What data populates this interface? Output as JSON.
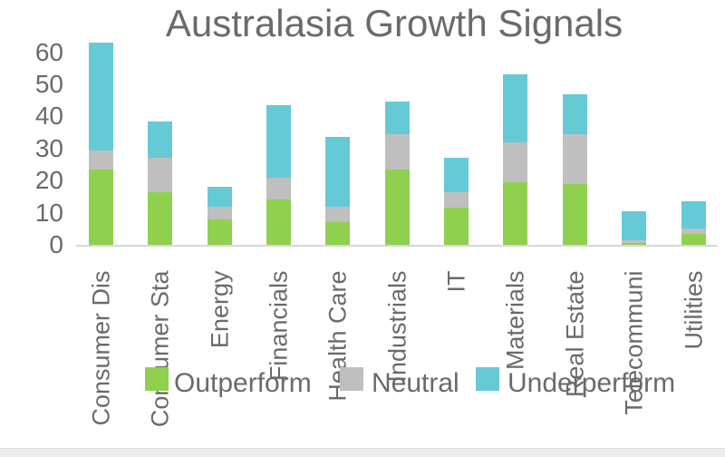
{
  "title": "Australasia Growth Signals",
  "colors": {
    "outperform_green": "#90d04f",
    "neutral_gray": "#bfbfbf",
    "underperform_cyan": "#66c9d6",
    "text_gray": "#6a6a6a",
    "axis_line": "#d8d8d8",
    "bottom_strip": "#ebecec"
  },
  "chart_data": {
    "type": "bar",
    "stacked": true,
    "title": "Australasia Growth Signals",
    "xlabel": "",
    "ylabel": "",
    "grid": false,
    "legend_position": "bottom",
    "ylim": [
      0,
      65
    ],
    "y_ticks": [
      0,
      10,
      20,
      30,
      40,
      50,
      60
    ],
    "categories": [
      "Consumer Dis",
      "Consumer Sta",
      "Energy",
      "Financials",
      "Health Care",
      "Industrials",
      "IT",
      "Materials",
      "Real Estate",
      "Telecommuni",
      "Utilities"
    ],
    "series": [
      {
        "name": "Outperform",
        "color": "#90d04f",
        "values": [
          23.5,
          16.5,
          8,
          14,
          7,
          23.5,
          11.5,
          19.5,
          19,
          0.5,
          3.5
        ]
      },
      {
        "name": "Neutral",
        "color": "#bfbfbf",
        "values": [
          6,
          10.5,
          4,
          7,
          5,
          11,
          5,
          12.5,
          15.5,
          1,
          1.5
        ]
      },
      {
        "name": "Underperform",
        "color": "#66c9d6",
        "values": [
          33.5,
          11.5,
          6,
          22.5,
          21.5,
          10,
          10.5,
          21,
          12.5,
          9,
          8.5
        ]
      }
    ],
    "totals": [
      63,
      38.5,
      18,
      43.5,
      33.5,
      44.5,
      27,
      53,
      47,
      10.5,
      13.5
    ]
  },
  "legend": {
    "items": [
      {
        "label": "Outperform"
      },
      {
        "label": "Neutral"
      },
      {
        "label": "Underperform"
      }
    ]
  }
}
